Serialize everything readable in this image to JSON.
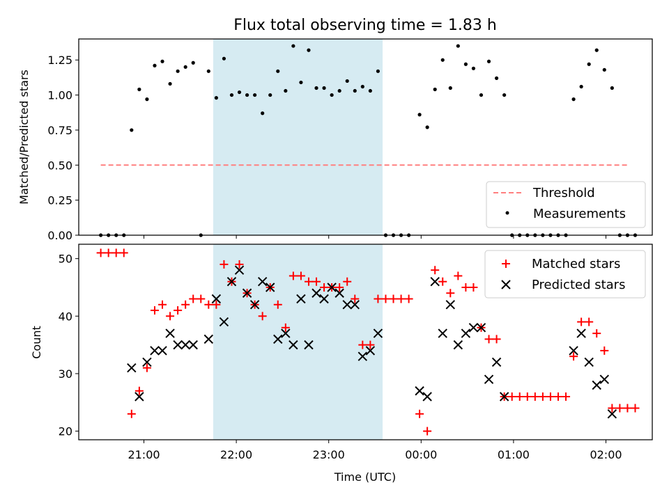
{
  "chart_data": [
    {
      "type": "scatter",
      "title": "Flux total observing time = 1.83 h",
      "xlabel": "",
      "ylabel": "Matched/Predicted stars",
      "ylim": [
        0,
        1.4
      ],
      "xlim": [
        "20:30",
        "02:33"
      ],
      "yticks": [
        "0.00",
        "0.25",
        "0.50",
        "0.75",
        "1.00",
        "1.25"
      ],
      "highlight_span": {
        "from": "21:45",
        "to": "23:35",
        "color": "#add8e6"
      },
      "legend_position": "lower-right",
      "series": [
        {
          "name": "Threshold",
          "style": "dashed-line",
          "color": "#ff7f7f",
          "points": [
            [
              "20:32",
              0.5
            ],
            [
              "02:15",
              0.5
            ]
          ]
        },
        {
          "name": "Measurements",
          "style": "dot",
          "color": "#000000",
          "points": [
            [
              "20:32",
              0
            ],
            [
              "20:37",
              0
            ],
            [
              "20:42",
              0
            ],
            [
              "20:47",
              0
            ],
            [
              "20:52",
              0.75
            ],
            [
              "20:57",
              1.04
            ],
            [
              "21:02",
              0.97
            ],
            [
              "21:07",
              1.21
            ],
            [
              "21:12",
              1.24
            ],
            [
              "21:17",
              1.08
            ],
            [
              "21:22",
              1.17
            ],
            [
              "21:27",
              1.2
            ],
            [
              "21:32",
              1.23
            ],
            [
              "21:37",
              0
            ],
            [
              "21:42",
              1.17
            ],
            [
              "21:47",
              0.98
            ],
            [
              "21:52",
              1.26
            ],
            [
              "21:57",
              1.0
            ],
            [
              "22:02",
              1.02
            ],
            [
              "22:07",
              1.0
            ],
            [
              "22:12",
              1.0
            ],
            [
              "22:17",
              0.87
            ],
            [
              "22:22",
              1.0
            ],
            [
              "22:27",
              1.17
            ],
            [
              "22:32",
              1.03
            ],
            [
              "22:37",
              1.35
            ],
            [
              "22:42",
              1.09
            ],
            [
              "22:47",
              1.32
            ],
            [
              "22:52",
              1.05
            ],
            [
              "22:57",
              1.05
            ],
            [
              "23:02",
              1.0
            ],
            [
              "23:07",
              1.03
            ],
            [
              "23:12",
              1.1
            ],
            [
              "23:17",
              1.03
            ],
            [
              "23:22",
              1.06
            ],
            [
              "23:27",
              1.03
            ],
            [
              "23:32",
              1.17
            ],
            [
              "23:37",
              0
            ],
            [
              "23:42",
              0
            ],
            [
              "23:47",
              0
            ],
            [
              "23:52",
              0
            ],
            [
              "23:59",
              0.86
            ],
            [
              "00:04",
              0.77
            ],
            [
              "00:09",
              1.04
            ],
            [
              "00:14",
              1.25
            ],
            [
              "00:19",
              1.05
            ],
            [
              "00:24",
              1.35
            ],
            [
              "00:29",
              1.22
            ],
            [
              "00:34",
              1.19
            ],
            [
              "00:39",
              1.0
            ],
            [
              "00:44",
              1.24
            ],
            [
              "00:49",
              1.12
            ],
            [
              "00:54",
              1.0
            ],
            [
              "00:59",
              0
            ],
            [
              "01:04",
              0
            ],
            [
              "01:09",
              0
            ],
            [
              "01:14",
              0
            ],
            [
              "01:19",
              0
            ],
            [
              "01:24",
              0
            ],
            [
              "01:29",
              0
            ],
            [
              "01:34",
              0
            ],
            [
              "01:39",
              0.97
            ],
            [
              "01:44",
              1.06
            ],
            [
              "01:49",
              1.22
            ],
            [
              "01:54",
              1.32
            ],
            [
              "01:59",
              1.18
            ],
            [
              "02:04",
              1.05
            ],
            [
              "02:09",
              0
            ],
            [
              "02:14",
              0
            ],
            [
              "02:19",
              0
            ]
          ]
        }
      ]
    },
    {
      "type": "scatter",
      "xlabel": "Time (UTC)",
      "ylabel": "Count",
      "ylim": [
        18.5,
        52.5
      ],
      "xlim": [
        "20:30",
        "02:33"
      ],
      "yticks": [
        "20",
        "30",
        "40",
        "50"
      ],
      "xticks": [
        "21:00",
        "22:00",
        "23:00",
        "00:00",
        "01:00",
        "02:00"
      ],
      "highlight_span": {
        "from": "21:45",
        "to": "23:35",
        "color": "#add8e6"
      },
      "legend_position": "upper-right",
      "series": [
        {
          "name": "Matched stars",
          "style": "plus",
          "color": "#ff0000",
          "points": [
            [
              "20:32",
              51
            ],
            [
              "20:37",
              51
            ],
            [
              "20:42",
              51
            ],
            [
              "20:47",
              51
            ],
            [
              "20:52",
              23
            ],
            [
              "20:57",
              27
            ],
            [
              "21:02",
              31
            ],
            [
              "21:07",
              41
            ],
            [
              "21:12",
              42
            ],
            [
              "21:17",
              40
            ],
            [
              "21:22",
              41
            ],
            [
              "21:27",
              42
            ],
            [
              "21:32",
              43
            ],
            [
              "21:37",
              43
            ],
            [
              "21:42",
              42
            ],
            [
              "21:47",
              42
            ],
            [
              "21:52",
              49
            ],
            [
              "21:57",
              46
            ],
            [
              "22:02",
              49
            ],
            [
              "22:07",
              44
            ],
            [
              "22:12",
              42
            ],
            [
              "22:17",
              40
            ],
            [
              "22:22",
              45
            ],
            [
              "22:27",
              42
            ],
            [
              "22:32",
              38
            ],
            [
              "22:37",
              47
            ],
            [
              "22:42",
              47
            ],
            [
              "22:47",
              46
            ],
            [
              "22:52",
              46
            ],
            [
              "22:57",
              45
            ],
            [
              "23:02",
              45
            ],
            [
              "23:07",
              45
            ],
            [
              "23:12",
              46
            ],
            [
              "23:17",
              43
            ],
            [
              "23:22",
              35
            ],
            [
              "23:27",
              35
            ],
            [
              "23:32",
              43
            ],
            [
              "23:37",
              43
            ],
            [
              "23:42",
              43
            ],
            [
              "23:47",
              43
            ],
            [
              "23:52",
              43
            ],
            [
              "23:59",
              23
            ],
            [
              "00:04",
              20
            ],
            [
              "00:09",
              48
            ],
            [
              "00:14",
              46
            ],
            [
              "00:19",
              44
            ],
            [
              "00:24",
              47
            ],
            [
              "00:29",
              45
            ],
            [
              "00:34",
              45
            ],
            [
              "00:39",
              38
            ],
            [
              "00:44",
              36
            ],
            [
              "00:49",
              36
            ],
            [
              "00:54",
              26
            ],
            [
              "00:59",
              26
            ],
            [
              "01:04",
              26
            ],
            [
              "01:09",
              26
            ],
            [
              "01:14",
              26
            ],
            [
              "01:19",
              26
            ],
            [
              "01:24",
              26
            ],
            [
              "01:29",
              26
            ],
            [
              "01:34",
              26
            ],
            [
              "01:39",
              33
            ],
            [
              "01:44",
              39
            ],
            [
              "01:49",
              39
            ],
            [
              "01:54",
              37
            ],
            [
              "01:59",
              34
            ],
            [
              "02:04",
              24
            ],
            [
              "02:09",
              24
            ],
            [
              "02:14",
              24
            ],
            [
              "02:19",
              24
            ]
          ]
        },
        {
          "name": "Predicted stars",
          "style": "cross",
          "color": "#000000",
          "points": [
            [
              "20:52",
              31
            ],
            [
              "20:57",
              26
            ],
            [
              "21:02",
              32
            ],
            [
              "21:07",
              34
            ],
            [
              "21:12",
              34
            ],
            [
              "21:17",
              37
            ],
            [
              "21:22",
              35
            ],
            [
              "21:27",
              35
            ],
            [
              "21:32",
              35
            ],
            [
              "21:42",
              36
            ],
            [
              "21:47",
              43
            ],
            [
              "21:52",
              39
            ],
            [
              "21:57",
              46
            ],
            [
              "22:02",
              48
            ],
            [
              "22:07",
              44
            ],
            [
              "22:12",
              42
            ],
            [
              "22:17",
              46
            ],
            [
              "22:22",
              45
            ],
            [
              "22:27",
              36
            ],
            [
              "22:32",
              37
            ],
            [
              "22:37",
              35
            ],
            [
              "22:42",
              43
            ],
            [
              "22:47",
              35
            ],
            [
              "22:52",
              44
            ],
            [
              "22:57",
              43
            ],
            [
              "23:02",
              45
            ],
            [
              "23:07",
              44
            ],
            [
              "23:12",
              42
            ],
            [
              "23:17",
              42
            ],
            [
              "23:22",
              33
            ],
            [
              "23:27",
              34
            ],
            [
              "23:32",
              37
            ],
            [
              "23:59",
              27
            ],
            [
              "00:04",
              26
            ],
            [
              "00:09",
              46
            ],
            [
              "00:14",
              37
            ],
            [
              "00:19",
              42
            ],
            [
              "00:24",
              35
            ],
            [
              "00:29",
              37
            ],
            [
              "00:34",
              38
            ],
            [
              "00:39",
              38
            ],
            [
              "00:44",
              29
            ],
            [
              "00:49",
              32
            ],
            [
              "00:54",
              26
            ],
            [
              "01:39",
              34
            ],
            [
              "01:44",
              37
            ],
            [
              "01:49",
              32
            ],
            [
              "01:54",
              28
            ],
            [
              "01:59",
              29
            ],
            [
              "02:04",
              23
            ]
          ]
        }
      ]
    }
  ]
}
